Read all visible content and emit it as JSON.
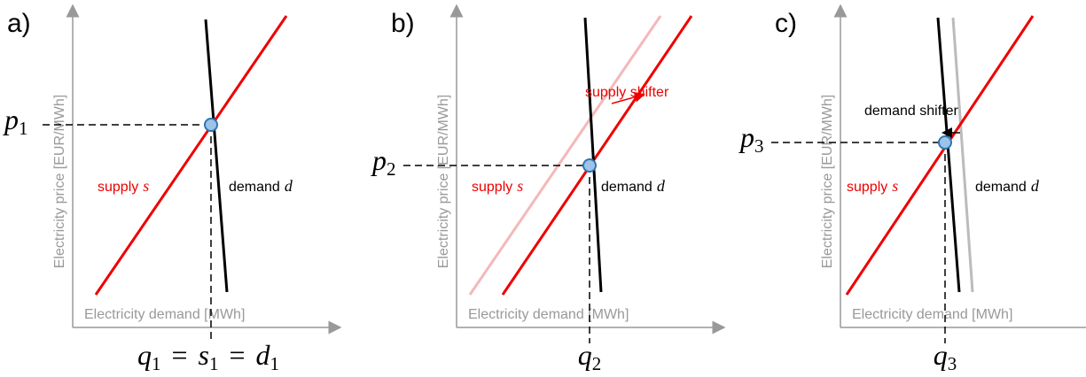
{
  "panels": [
    {
      "label": "a)",
      "y_axis_label": "Electricity price [EUR/MWh]",
      "x_axis_label": "Electricity demand [MWh]",
      "supply_label": {
        "text": "supply",
        "variable": "s"
      },
      "demand_label": {
        "text": "demand",
        "variable": "d"
      },
      "price_label": {
        "symbol": "p",
        "subscript": "1"
      },
      "quantity_label": {
        "terms": [
          {
            "symbol": "q",
            "subscript": "1"
          },
          {
            "symbol": "s",
            "subscript": "1"
          },
          {
            "symbol": "d",
            "subscript": "1"
          }
        ],
        "separator": "="
      }
    },
    {
      "label": "b)",
      "y_axis_label": "Electricity price [EUR/MWh]",
      "x_axis_label": "Electricity demand [MWh]",
      "supply_label": {
        "text": "supply",
        "variable": "s"
      },
      "demand_label": {
        "text": "demand",
        "variable": "d"
      },
      "shifter_label": "supply shifter",
      "price_label": {
        "symbol": "p",
        "subscript": "2"
      },
      "quantity_label": {
        "terms": [
          {
            "symbol": "q",
            "subscript": "2"
          }
        ]
      }
    },
    {
      "label": "c)",
      "y_axis_label": "Electricity price [EUR/MWh]",
      "x_axis_label": "Electricity demand [MWh]",
      "supply_label": {
        "text": "supply",
        "variable": "s"
      },
      "demand_label": {
        "text": "demand",
        "variable": "d"
      },
      "shifter_label": "demand shifter",
      "price_label": {
        "symbol": "p",
        "subscript": "3"
      },
      "quantity_label": {
        "terms": [
          {
            "symbol": "q",
            "subscript": "3"
          }
        ]
      }
    }
  ]
}
